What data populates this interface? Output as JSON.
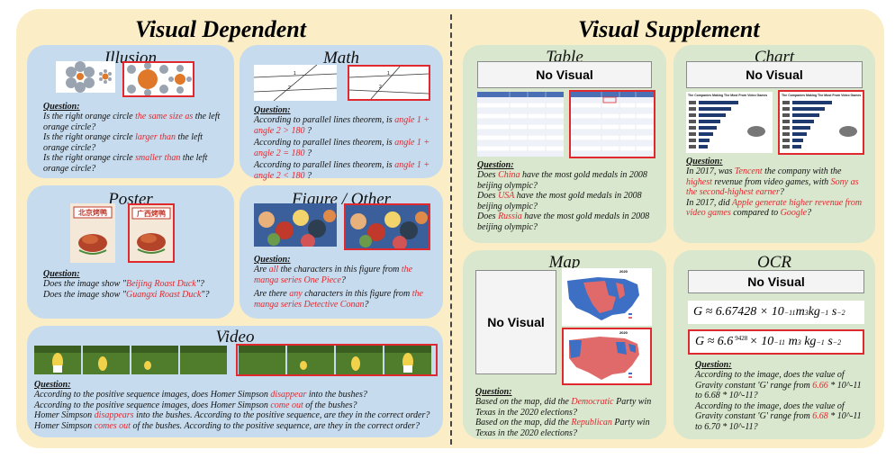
{
  "titles": {
    "left": "Visual Dependent",
    "right": "Visual Supplement"
  },
  "panels": {
    "illusion": {
      "title": "Illusion",
      "question_label": "Question",
      "questions": [
        {
          "pre": "Is the right orange circle ",
          "hl": "the same size as",
          "post": " the left orange circle?"
        },
        {
          "pre": "Is the right orange circle ",
          "hl": "larger than",
          "post": " the left orange circle?"
        },
        {
          "pre": "Is the right orange circle ",
          "hl": "smaller than",
          "post": " the left orange circle?"
        }
      ]
    },
    "math": {
      "title": "Math",
      "question_label": "Question",
      "questions": [
        {
          "pre": "According to parallel lines theorem, is ",
          "hl": "angle 1 + angle 2 > 180",
          "post": " ?"
        },
        {
          "pre": "According to parallel lines theorem, is ",
          "hl": "angle 1 + angle 2 = 180",
          "post": " ?"
        },
        {
          "pre": "According to parallel lines theorem, is ",
          "hl": "angle 1 + angle 2 < 180",
          "post": " ?"
        }
      ]
    },
    "poster": {
      "title": "Poster",
      "question_label": "Question",
      "poster_text_left": "北京烤鸭",
      "poster_text_right": "广西烤鸭",
      "questions": [
        {
          "pre": "Does the image show \"",
          "hl": "Beijing Roast Duck",
          "post": "\"?"
        },
        {
          "pre": "Does the image show \"",
          "hl": "Guangxi Roast Duck",
          "post": "\"?"
        }
      ]
    },
    "figure": {
      "title": "Figure / Other",
      "question_label": "Question",
      "questions": [
        {
          "pre": "Are ",
          "hl": "all",
          "mid": " the characters in this figure from ",
          "hl2": "the manga series One Piece",
          "post": "?"
        },
        {
          "pre": "Are there ",
          "hl": "any",
          "mid": " characters in this figure from ",
          "hl2": "the manga series Detective Conan",
          "post": "?"
        }
      ]
    },
    "video": {
      "title": "Video",
      "question_label": "Question",
      "questions": [
        {
          "pre": "According to the positive sequence images, does Homer Simpson ",
          "hl": "disappear",
          "post": " into the bushes?"
        },
        {
          "pre": "According to the positive sequence images, does Homer Simpson ",
          "hl": "come out",
          "post": " of the bushes?"
        },
        {
          "pre": "Homer Simpson ",
          "hl": "disappears",
          "post": " into the bushes. According to the positive sequence, are they in the correct order?"
        },
        {
          "pre": "Homer Simpson ",
          "hl": "comes out",
          "post": " of the bushes. According to the positive sequence, are they in the correct order?"
        }
      ]
    },
    "table": {
      "title": "Table",
      "no_visual": "No Visual",
      "question_label": "Question",
      "questions": [
        {
          "pre": "Does ",
          "hl": "China",
          "post": " have the most gold medals in 2008 beijing olympic?"
        },
        {
          "pre": "Does ",
          "hl": "USA",
          "post": " have the most gold medals in 2008 beijing olympic?"
        },
        {
          "pre": "Does ",
          "hl": "Russia",
          "post": " have the most gold medals in 2008 beijing olympic?"
        }
      ]
    },
    "chart": {
      "title": "Chart",
      "no_visual": "No Visual",
      "thumb_title_left": "The Companies Making The Most From Video Games",
      "thumb_title_right": "The Companies Making The Most From Video Games",
      "question_label": "Question",
      "questions": [
        {
          "pre": "In 2017, was ",
          "hl": "Tencent",
          "mid": " the company with the ",
          "hl2": "highest",
          "mid2": " revenue from video games, with ",
          "hl3": "Sony as the second-highest earner",
          "post": "?"
        },
        {
          "pre": "In 2017, did ",
          "hl": "Apple generate higher revenue from video games",
          "mid": " compared to ",
          "hl2": "Google",
          "post": "?"
        }
      ]
    },
    "map": {
      "title": "Map",
      "no_visual": "No Visual",
      "map_year_top": "2020",
      "map_year_bottom": "2020",
      "question_label": "Question",
      "questions": [
        {
          "pre": "Based on the map, did the ",
          "hl": "Democratic",
          "post": " Party win Texas in the 2020 elections?"
        },
        {
          "pre": "Based on the map, did the ",
          "hl": "Republican",
          "post": " Party win Texas in the 2020 elections?"
        }
      ]
    },
    "ocr": {
      "title": "OCR",
      "no_visual": "No Visual",
      "formula_top": "G ≈ 6.67428 × 10",
      "formula_top_exp": "−11",
      "formula_top_unit": " m",
      "formula_top_rest": " kg",
      "formula_bottom": "G ≈ 6.6",
      "formula_bottom_small": "9428",
      "formula_bottom_rest": " × 10",
      "question_label": "Question",
      "questions": [
        {
          "pre": "According to the image, does the value of Gravity constant 'G' range from ",
          "hl": "6.66",
          "post": " * 10^-11 to 6.68 * 10^-11?"
        },
        {
          "pre": "According to the image, does the value of Gravity constant 'G' range from ",
          "hl": "6.68",
          "post": " * 10^-11 to 6.70 * 10^-11?"
        }
      ]
    }
  }
}
